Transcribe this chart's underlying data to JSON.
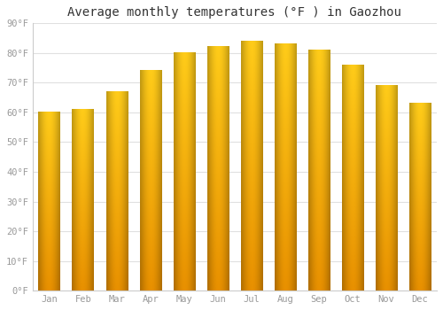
{
  "title": "Average monthly temperatures (°F ) in Gaozhou",
  "months": [
    "Jan",
    "Feb",
    "Mar",
    "Apr",
    "May",
    "Jun",
    "Jul",
    "Aug",
    "Sep",
    "Oct",
    "Nov",
    "Dec"
  ],
  "values": [
    60,
    61,
    67,
    74,
    80,
    82,
    84,
    83,
    81,
    76,
    69,
    63
  ],
  "bar_color_top": "#FFCC44",
  "bar_color_mid": "#FFB020",
  "bar_color_bot": "#E89000",
  "ylim": [
    0,
    90
  ],
  "yticks": [
    0,
    10,
    20,
    30,
    40,
    50,
    60,
    70,
    80,
    90
  ],
  "ytick_labels": [
    "0°F",
    "10°F",
    "20°F",
    "30°F",
    "40°F",
    "50°F",
    "60°F",
    "70°F",
    "80°F",
    "90°F"
  ],
  "background_color": "#ffffff",
  "grid_color": "#e0e0e0",
  "title_fontsize": 10,
  "tick_fontsize": 7.5,
  "tick_color": "#999999",
  "bar_width": 0.65
}
